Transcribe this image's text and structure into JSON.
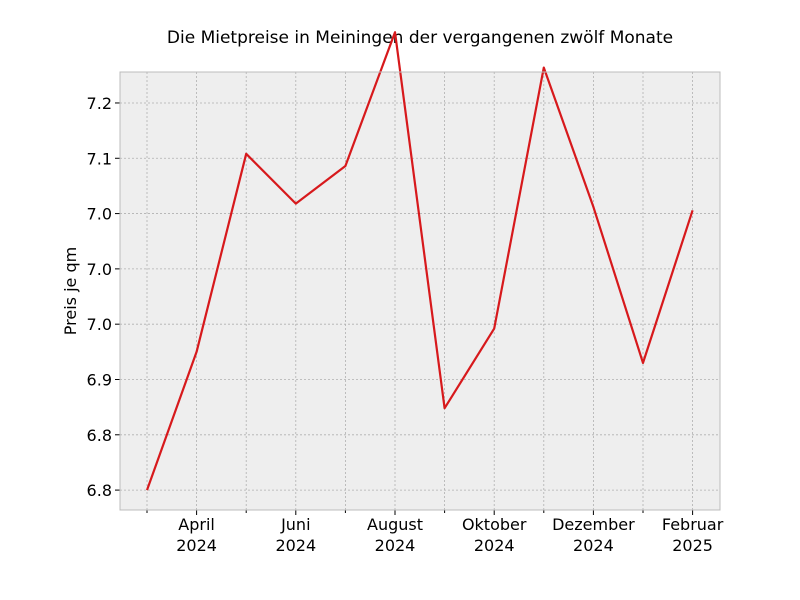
{
  "chart_data": {
    "type": "line",
    "title": "Die Mietpreise in Meiningen der vergangenen zwölf Monate",
    "xlabel": "",
    "ylabel": "Preis je qm",
    "x": [
      "2024-03",
      "2024-04",
      "2024-05",
      "2024-06",
      "2024-07",
      "2024-08",
      "2024-09",
      "2024-10",
      "2024-11",
      "2024-12",
      "2025-01",
      "2025-02"
    ],
    "x_ticks": [
      {
        "x": "2024-04",
        "label": "April\n2024"
      },
      {
        "x": "2024-06",
        "label": "Juni\n2024"
      },
      {
        "x": "2024-08",
        "label": "August\n2024"
      },
      {
        "x": "2024-10",
        "label": "Oktober\n2024"
      },
      {
        "x": "2024-12",
        "label": "Dezember\n2024"
      },
      {
        "x": "2025-02",
        "label": "Februar\n2025"
      }
    ],
    "y_ticks": [
      {
        "value": 6.8,
        "label": "6.8"
      },
      {
        "value": 6.85,
        "label": "6.8"
      },
      {
        "value": 6.9,
        "label": "6.9"
      },
      {
        "value": 6.95,
        "label": "7.0"
      },
      {
        "value": 7.0,
        "label": "7.0"
      },
      {
        "value": 7.05,
        "label": "7.0"
      },
      {
        "value": 7.1,
        "label": "7.1"
      },
      {
        "value": 7.15,
        "label": "7.2"
      }
    ],
    "ylim": [
      6.782,
      7.178
    ],
    "series": [
      {
        "color": "#d7191c",
        "values": [
          6.8,
          6.925,
          7.104,
          7.059,
          7.093,
          7.214,
          6.874,
          6.946,
          7.182,
          7.056,
          6.915,
          7.053
        ]
      }
    ],
    "grid": true,
    "legend": "none",
    "colors": {
      "plot_bg": "#eeeeee",
      "grid": "#b0b0b0",
      "line": "#d7191c"
    }
  }
}
